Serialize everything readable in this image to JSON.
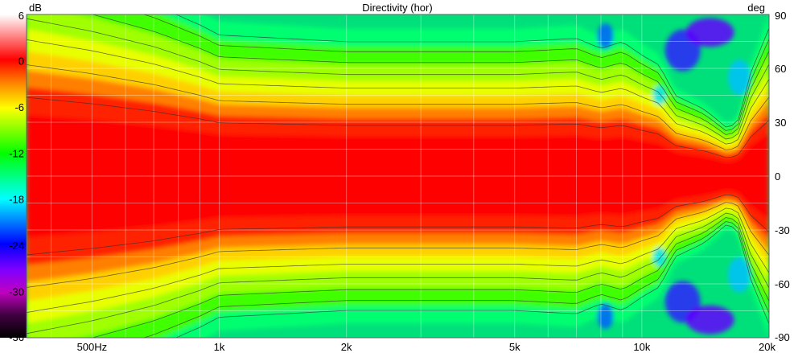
{
  "chart_data": {
    "type": "heatmap",
    "title": "Directivity (hor)",
    "colorbar_label": "dB",
    "right_axis_label": "deg",
    "x_scale": "log",
    "xlim": [
      350,
      20000
    ],
    "ylim": [
      -90,
      90
    ],
    "colorbar_range": [
      -36,
      6
    ],
    "x_ticks": [
      {
        "value": 500,
        "label": "500Hz"
      },
      {
        "value": 1000,
        "label": "1k"
      },
      {
        "value": 2000,
        "label": "2k"
      },
      {
        "value": 5000,
        "label": "5k"
      },
      {
        "value": 10000,
        "label": "10k"
      },
      {
        "value": 20000,
        "label": "20k"
      }
    ],
    "y_ticks": [
      {
        "value": 90,
        "label": "90"
      },
      {
        "value": 60,
        "label": "60"
      },
      {
        "value": 30,
        "label": "30"
      },
      {
        "value": 0,
        "label": "0"
      },
      {
        "value": -30,
        "label": "-30"
      },
      {
        "value": -60,
        "label": "-60"
      },
      {
        "value": -90,
        "label": "-90"
      }
    ],
    "colorbar_ticks": [
      {
        "value": 6,
        "label": "6"
      },
      {
        "value": 0,
        "label": "0"
      },
      {
        "value": -6,
        "label": "-6"
      },
      {
        "value": -12,
        "label": "-12"
      },
      {
        "value": -18,
        "label": "-18"
      },
      {
        "value": -24,
        "label": "-24"
      },
      {
        "value": -30,
        "label": "-30"
      },
      {
        "value": -36,
        "label": "-36"
      }
    ],
    "contour_levels_db": [
      -3,
      -6,
      -9,
      -12,
      -15,
      -18,
      -21
    ],
    "beamwidth_deg": {
      "frequencies": [
        350,
        500,
        700,
        900,
        1000,
        2000,
        5000,
        7000,
        8000,
        9000,
        10000,
        11000,
        12000,
        14000,
        15000,
        16000,
        17000,
        18000,
        20000
      ],
      "half_angle_minus6db": [
        62,
        57,
        51,
        45,
        42,
        40,
        40,
        41,
        38,
        40,
        36,
        33,
        24,
        20,
        17,
        14,
        17,
        30,
        44
      ]
    },
    "colormap": [
      "#ffffff",
      "#ff0000",
      "#ff8000",
      "#ffff00",
      "#80ff00",
      "#00ff00",
      "#00ffff",
      "#0000ff",
      "#8000ff",
      "#000000"
    ],
    "grid": true
  }
}
